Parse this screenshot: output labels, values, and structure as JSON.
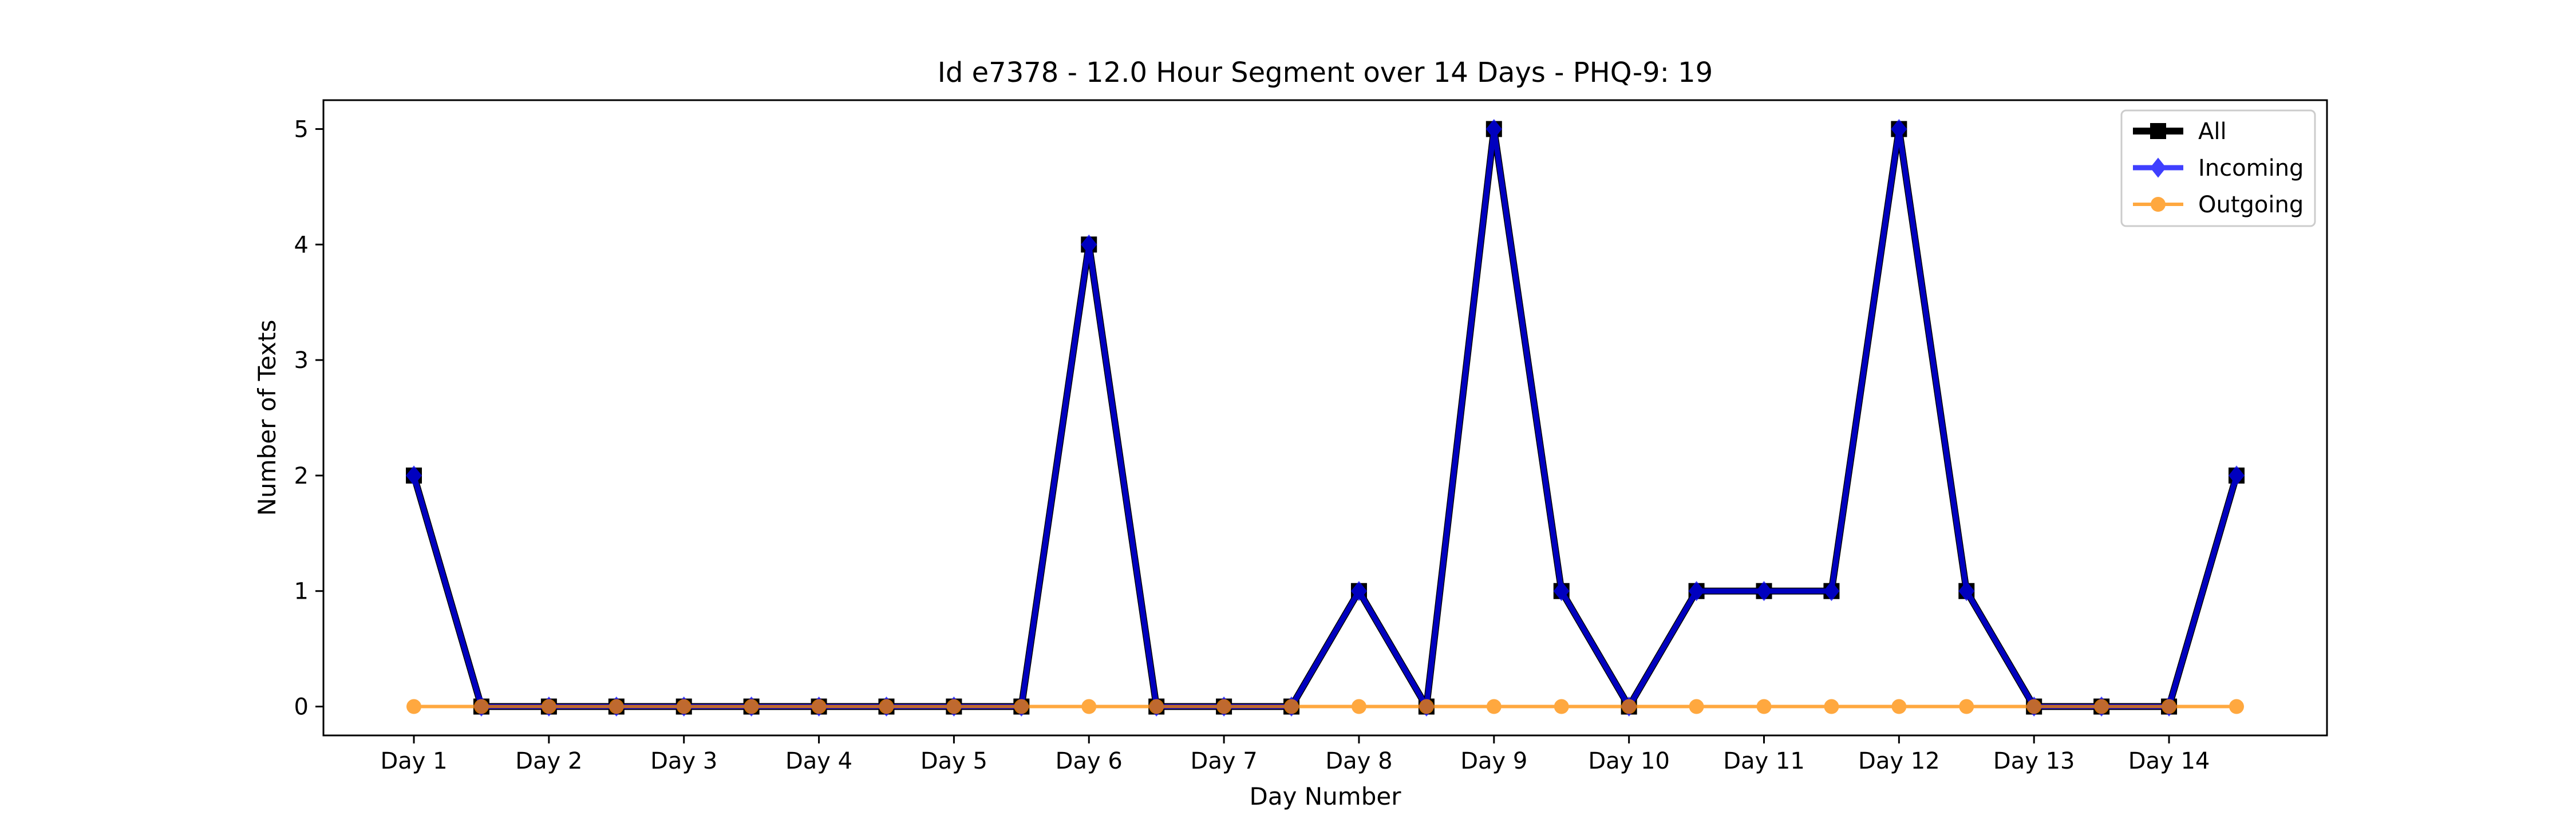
{
  "chart_data": {
    "type": "line",
    "title": "Id e7378 - 12.0 Hour Segment over 14 Days - PHQ-9: 19",
    "xlabel": "Day Number",
    "ylabel": "Number of Texts",
    "x_tick_labels": [
      "Day 1",
      "Day 2",
      "Day 3",
      "Day 4",
      "Day 5",
      "Day 6",
      "Day 7",
      "Day 8",
      "Day 9",
      "Day 10",
      "Day 11",
      "Day 12",
      "Day 13",
      "Day 14"
    ],
    "x": [
      1,
      1.5,
      2,
      2.5,
      3,
      3.5,
      4,
      4.5,
      5,
      5.5,
      6,
      6.5,
      7,
      7.5,
      8,
      8.5,
      9,
      9.5,
      10,
      10.5,
      11,
      11.5,
      12,
      12.5,
      13,
      13.5,
      14,
      14.5
    ],
    "xlim": [
      0.33,
      15.17
    ],
    "ylim": [
      -0.25,
      5.25
    ],
    "y_ticks": [
      0,
      1,
      2,
      3,
      4,
      5
    ],
    "legend_position": "top-right",
    "grid": false,
    "series": [
      {
        "name": "All",
        "color": "#000000",
        "marker": "square",
        "values": [
          2,
          0,
          0,
          0,
          0,
          0,
          0,
          0,
          0,
          0,
          4,
          0,
          0,
          0,
          1,
          0,
          5,
          1,
          0,
          1,
          1,
          1,
          5,
          1,
          0,
          0,
          0,
          2
        ]
      },
      {
        "name": "Incoming",
        "color": "#0000ff",
        "marker": "diamond",
        "values": [
          2,
          0,
          0,
          0,
          0,
          0,
          0,
          0,
          0,
          0,
          4,
          0,
          0,
          0,
          1,
          0,
          5,
          1,
          0,
          1,
          1,
          1,
          5,
          1,
          0,
          0,
          0,
          2
        ]
      },
      {
        "name": "Outgoing",
        "color": "#ff8c00",
        "marker": "circle",
        "values": [
          0,
          0,
          0,
          0,
          0,
          0,
          0,
          0,
          0,
          0,
          0,
          0,
          0,
          0,
          0,
          0,
          0,
          0,
          0,
          0,
          0,
          0,
          0,
          0,
          0,
          0,
          0,
          0
        ]
      }
    ]
  }
}
